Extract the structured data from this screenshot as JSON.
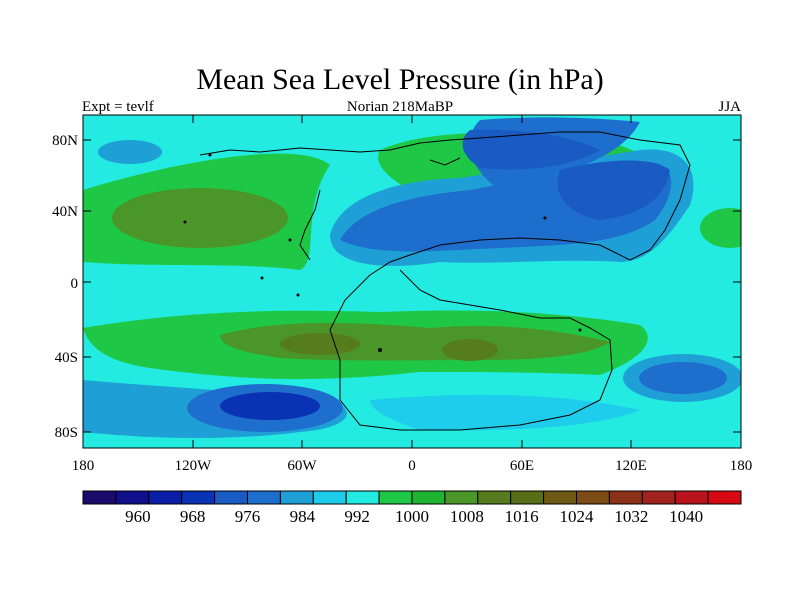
{
  "title": "Mean Sea Level Pressure (in hPa)",
  "left_string": "Expt = tevlf",
  "center_string": "Norian 218MaBP",
  "right_string": "JJA",
  "y_tick_labels": [
    {
      "label": "80N",
      "lat": 80
    },
    {
      "label": "40N",
      "lat": 40
    },
    {
      "label": "0",
      "lat": 0
    },
    {
      "label": "40S",
      "lat": -40
    },
    {
      "label": "80S",
      "lat": -80
    }
  ],
  "x_tick_labels": [
    {
      "label": "180",
      "lon": -180
    },
    {
      "label": "120W",
      "lon": -120
    },
    {
      "label": "60W",
      "lon": -60
    },
    {
      "label": "0",
      "lon": 0
    },
    {
      "label": "60E",
      "lon": 60
    },
    {
      "label": "120E",
      "lon": 120
    },
    {
      "label": "180",
      "lon": 180
    }
  ],
  "colorbar": {
    "colors": [
      "#1a0a6b",
      "#0f0f8c",
      "#0a1eaa",
      "#0a32b4",
      "#1a5ac3",
      "#1e6ecd",
      "#1ea0d7",
      "#1ecdeb",
      "#23ebe1",
      "#1ec846",
      "#1eb432",
      "#4b9628",
      "#557d1e",
      "#5a6e19",
      "#6e5a14",
      "#7d4b14",
      "#8c3219",
      "#a0231e",
      "#b9141e",
      "#d70a14"
    ],
    "tick_labels": [
      "960",
      "968",
      "976",
      "984",
      "992",
      "1000",
      "1008",
      "1016",
      "1024",
      "1032",
      "1040"
    ],
    "tick_values": [
      960,
      968,
      976,
      984,
      992,
      1000,
      1008,
      1016,
      1024,
      1032,
      1040
    ],
    "min": 952,
    "max": 1048
  },
  "map": {
    "projection": "cylindrical-equidistant",
    "lon_range": [
      -180,
      180
    ],
    "lat_range": [
      -90,
      90
    ],
    "background_level_hpa": 1000
  }
}
